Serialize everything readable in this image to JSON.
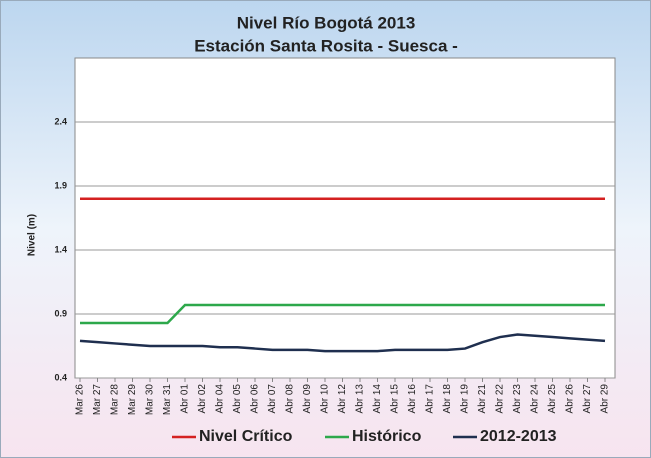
{
  "chart_data": {
    "type": "line",
    "title": "Nivel Río Bogotá 2013",
    "subtitle": "Estación Santa Rosita - Suesca -",
    "y_label": "Nivel (m)",
    "categories": [
      "Mar 26",
      "Mar 27",
      "Mar 28",
      "Mar 29",
      "Mar 30",
      "Mar 31",
      "Abr 01",
      "Abr 02",
      "Abr 04",
      "Abr 05",
      "Abr 06",
      "Abr 07",
      "Abr 08",
      "Abr 09",
      "Abr 10",
      "Abr 12",
      "Abr 13",
      "Abr 14",
      "Abr 15",
      "Abr 16",
      "Abr 17",
      "Abr 18",
      "Abr 19",
      "Abr 21",
      "Abr 22",
      "Abr 23",
      "Abr 24",
      "Abr 25",
      "Abr 26",
      "Abr 27",
      "Abr 29"
    ],
    "series": [
      {
        "name": "Nivel Crítico",
        "color": "#d42121",
        "values": [
          1.8,
          1.8,
          1.8,
          1.8,
          1.8,
          1.8,
          1.8,
          1.8,
          1.8,
          1.8,
          1.8,
          1.8,
          1.8,
          1.8,
          1.8,
          1.8,
          1.8,
          1.8,
          1.8,
          1.8,
          1.8,
          1.8,
          1.8,
          1.8,
          1.8,
          1.8,
          1.8,
          1.8,
          1.8,
          1.8,
          1.8
        ]
      },
      {
        "name": "Histórico",
        "color": "#2da84b",
        "values": [
          0.83,
          0.83,
          0.83,
          0.83,
          0.83,
          0.83,
          0.97,
          0.97,
          0.97,
          0.97,
          0.97,
          0.97,
          0.97,
          0.97,
          0.97,
          0.97,
          0.97,
          0.97,
          0.97,
          0.97,
          0.97,
          0.97,
          0.97,
          0.97,
          0.97,
          0.97,
          0.97,
          0.97,
          0.97,
          0.97,
          0.97
        ]
      },
      {
        "name": "2012-2013",
        "color": "#1f2f4f",
        "values": [
          0.69,
          0.68,
          0.67,
          0.66,
          0.65,
          0.65,
          0.65,
          0.65,
          0.64,
          0.64,
          0.63,
          0.62,
          0.62,
          0.62,
          0.61,
          0.61,
          0.61,
          0.61,
          0.62,
          0.62,
          0.62,
          0.62,
          0.63,
          0.68,
          0.72,
          0.74,
          0.73,
          0.72,
          0.71,
          0.7,
          0.69
        ]
      }
    ],
    "ylim": [
      0.4,
      2.9
    ],
    "yticks": [
      0.4,
      0.9,
      1.4,
      1.9,
      2.4
    ],
    "grid": true,
    "legend": "bottom"
  }
}
